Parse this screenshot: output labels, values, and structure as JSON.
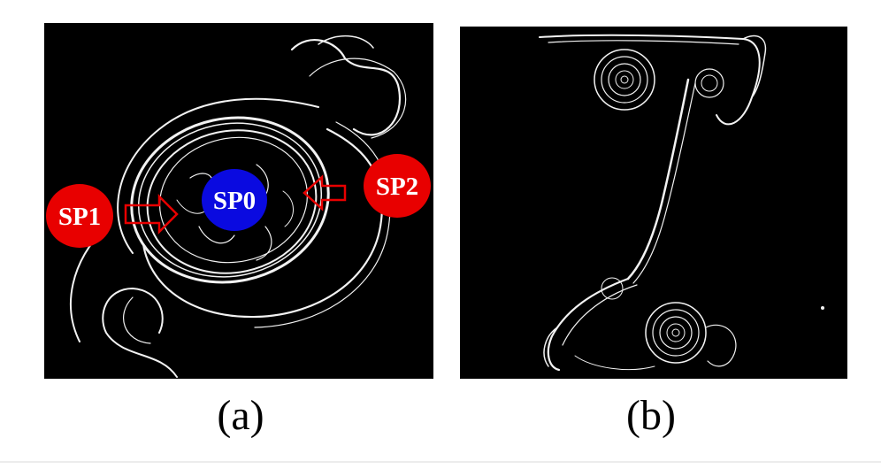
{
  "figure": {
    "panels": [
      {
        "caption": "(a)",
        "markers": [
          {
            "label": "SP1",
            "color": "#e80000"
          },
          {
            "label": "SP0",
            "color": "#0a0ae0"
          },
          {
            "label": "SP2",
            "color": "#e80000"
          }
        ],
        "arrow_color": "#e80000",
        "streak_color": "#f2f2f2"
      },
      {
        "caption": "(b)",
        "streak_color": "#f2f2f2"
      }
    ],
    "background": "#000000"
  }
}
